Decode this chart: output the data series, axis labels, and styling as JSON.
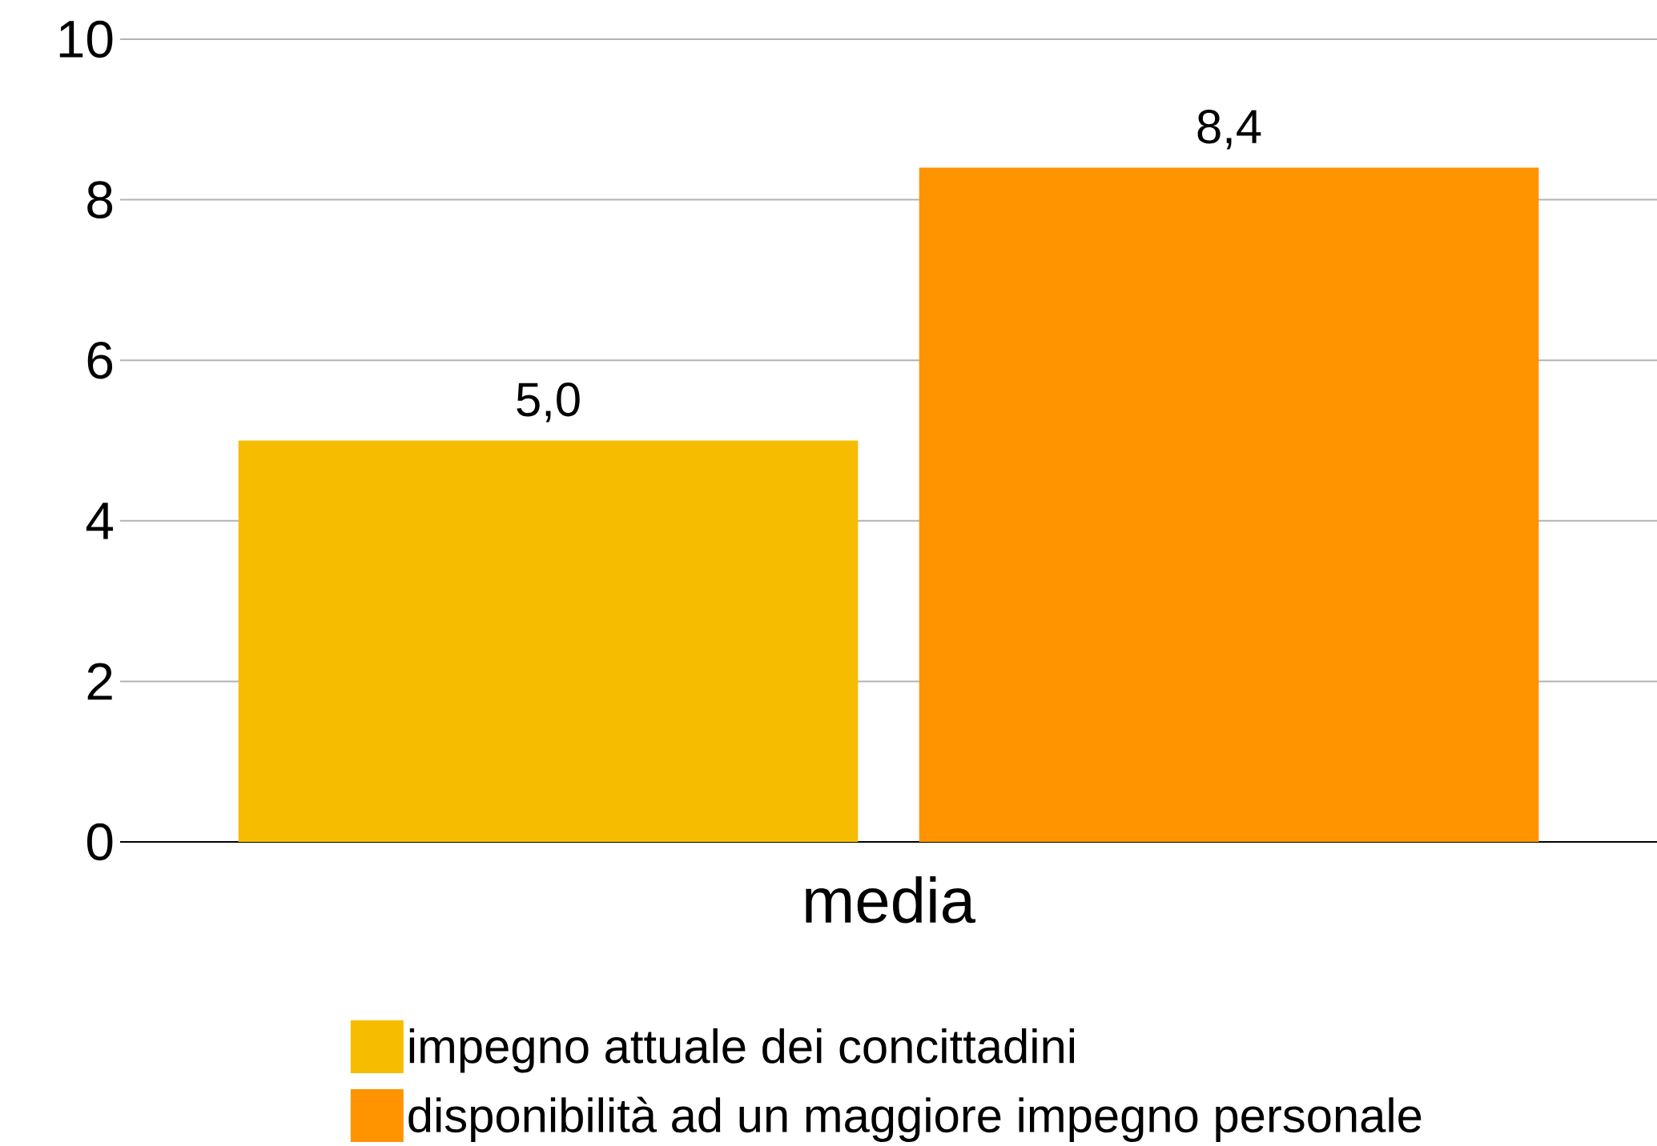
{
  "chart_data": {
    "type": "bar",
    "categories": [
      "media"
    ],
    "series": [
      {
        "name": "impegno attuale dei concittadini",
        "color": "#f6bc00",
        "values": [
          5.0
        ],
        "value_labels": [
          "5,0"
        ]
      },
      {
        "name": "disponibilità ad un maggiore impegno personale",
        "color": "#ff9300",
        "values": [
          8.4
        ],
        "value_labels": [
          "8,4"
        ]
      }
    ],
    "ylim": [
      0,
      10
    ],
    "yticks": [
      0,
      2,
      4,
      6,
      8,
      10
    ],
    "grid": "y",
    "legend": "bottom"
  }
}
